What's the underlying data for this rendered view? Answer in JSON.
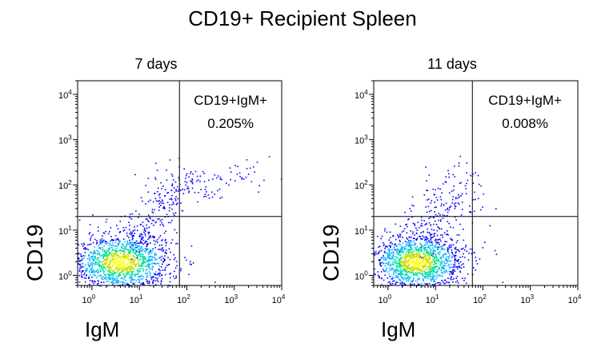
{
  "figure_title": "CD19+ Recipient Spleen",
  "chart_data": [
    {
      "type": "scatter",
      "title": "7 days",
      "xlabel": "IgM",
      "ylabel": "CD19",
      "x_scale": "log",
      "y_scale": "log",
      "xlim": [
        0.5,
        10000
      ],
      "ylim": [
        0.6,
        20000
      ],
      "x_ticks": [
        1,
        10,
        100,
        1000,
        10000
      ],
      "y_ticks": [
        1,
        10,
        100,
        1000,
        10000
      ],
      "x_tick_labels": [
        "10",
        "10",
        "10",
        "10",
        "10"
      ],
      "x_tick_exps": [
        "0",
        "1",
        "2",
        "3",
        "4"
      ],
      "y_tick_labels": [
        "10",
        "10",
        "10",
        "10",
        "10"
      ],
      "y_tick_exps": [
        "0",
        "1",
        "2",
        "3",
        "4"
      ],
      "gate": {
        "x_threshold": 70,
        "y_threshold": 20
      },
      "gate_label": "CD19+IgM+",
      "gate_percent": "0.205%",
      "populations": [
        {
          "name": "main",
          "center": [
            4,
            2
          ],
          "spread": [
            0.55,
            0.32
          ],
          "count": 1400
        },
        {
          "name": "diagonal",
          "from": [
            8,
            5
          ],
          "to": [
            90,
            150
          ],
          "jitter": 0.25,
          "count": 220
        },
        {
          "name": "upper-right",
          "from": [
            80,
            80
          ],
          "to": [
            3500,
            220
          ],
          "jitter": 0.18,
          "count": 70
        }
      ],
      "colors": [
        "#0000ff",
        "#00b0ff",
        "#00e0a0",
        "#c8e000",
        "#ffff00"
      ]
    },
    {
      "type": "scatter",
      "title": "11 days",
      "xlabel": "IgM",
      "ylabel": "CD19",
      "x_scale": "log",
      "y_scale": "log",
      "xlim": [
        0.5,
        10000
      ],
      "ylim": [
        0.6,
        20000
      ],
      "x_ticks": [
        1,
        10,
        100,
        1000,
        10000
      ],
      "y_ticks": [
        1,
        10,
        100,
        1000,
        10000
      ],
      "x_tick_labels": [
        "10",
        "10",
        "10",
        "10",
        "10"
      ],
      "x_tick_exps": [
        "0",
        "1",
        "2",
        "3",
        "4"
      ],
      "y_tick_labels": [
        "10",
        "10",
        "10",
        "10",
        "10"
      ],
      "y_tick_exps": [
        "0",
        "1",
        "2",
        "3",
        "4"
      ],
      "gate": {
        "x_threshold": 60,
        "y_threshold": 20
      },
      "gate_label": "CD19+IgM+",
      "gate_percent": "0.008%",
      "populations": [
        {
          "name": "main",
          "center": [
            4,
            2
          ],
          "spread": [
            0.5,
            0.32
          ],
          "count": 1400
        },
        {
          "name": "diagonal",
          "from": [
            3,
            5
          ],
          "to": [
            45,
            150
          ],
          "jitter": 0.3,
          "count": 200
        },
        {
          "name": "upper-right",
          "from": [
            60,
            5
          ],
          "to": [
            100,
            30
          ],
          "jitter": 0.25,
          "count": 8
        }
      ],
      "colors": [
        "#0000ff",
        "#00b0ff",
        "#00e0a0",
        "#c8e000",
        "#ffff00"
      ]
    }
  ]
}
